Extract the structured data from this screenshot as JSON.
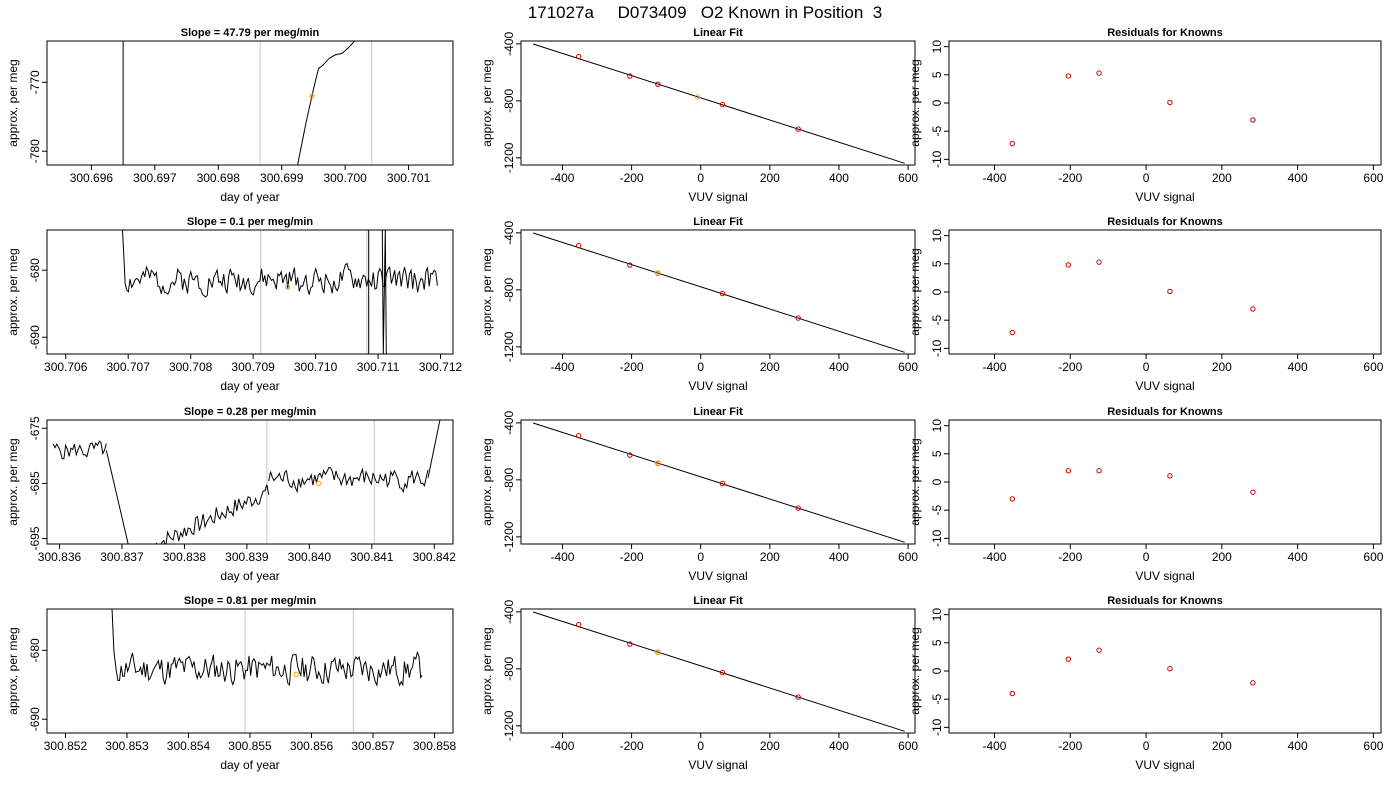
{
  "page_title": "171027a     D073409   O2 Known in Position  3",
  "chart_data": [
    {
      "type": "line",
      "title": "Slope =  47.79  per meg/min",
      "xlabel": "day of year",
      "ylabel": "approx. per meg",
      "xlim": [
        300.6953,
        300.7017
      ],
      "ylim": [
        -782,
        -764
      ],
      "xticks": [
        "300.696",
        "300.697",
        "300.698",
        "300.699",
        "300.700",
        "300.701"
      ],
      "yticks": [
        -780,
        -770
      ],
      "vlines_black": [
        300.6965
      ],
      "vlines_gray": [
        300.69866,
        300.70042
      ],
      "series": [
        {
          "x": [
            300.69925,
            300.69938,
            300.6995,
            300.69958,
            300.69965,
            300.69975,
            300.69985,
            300.69995,
            300.70005,
            300.70015,
            300.70025
          ],
          "y": [
            -782,
            -776,
            -771,
            -768,
            -767.5,
            -766.5,
            -766,
            -765.8,
            -765,
            -764,
            -762
          ]
        }
      ],
      "marker": {
        "x": 300.69948,
        "y": -772,
        "color": "#FFA500"
      }
    },
    {
      "type": "scatter",
      "title": "Linear Fit",
      "xlabel": "VUV signal",
      "ylabel": "approx. per meg",
      "xlim": [
        -520,
        620
      ],
      "ylim": [
        -1250,
        -380
      ],
      "xticks": [
        -400,
        -200,
        0,
        200,
        400,
        600
      ],
      "yticks": [
        -400,
        -800,
        -1200
      ],
      "fit_line": {
        "x": [
          -485,
          590
        ],
        "y": [
          -401,
          -1238
        ]
      },
      "points": {
        "x": [
          -353,
          -205,
          -124,
          63,
          282
        ],
        "y": [
          -490,
          -626,
          -684,
          -826,
          -998
        ]
      },
      "highlight": {
        "x": -10,
        "y": -772,
        "color": "#FFA500"
      }
    },
    {
      "type": "scatter",
      "title": "Residuals for Knowns",
      "xlabel": "VUV signal",
      "ylabel": "approx. per meg",
      "xlim": [
        -520,
        620
      ],
      "ylim": [
        -11,
        11
      ],
      "xticks": [
        -400,
        -200,
        0,
        200,
        400,
        600
      ],
      "yticks": [
        10,
        5,
        0,
        -5,
        -10
      ],
      "points": {
        "x": [
          -353,
          -205,
          -124,
          63,
          282
        ],
        "y": [
          -7.2,
          4.8,
          5.3,
          0.1,
          -3
        ]
      }
    },
    {
      "type": "line",
      "title": "Slope =  0.1  per meg/min",
      "xlabel": "day of year",
      "ylabel": "approx. per meg",
      "xlim": [
        300.7057,
        300.7122
      ],
      "ylim": [
        -692.5,
        -674
      ],
      "xticks": [
        "300.706",
        "300.707",
        "300.708",
        "300.709",
        "300.710",
        "300.711",
        "300.712"
      ],
      "yticks": [
        -690,
        -680
      ],
      "vlines_black": [
        300.71085
      ],
      "vlines_gray": [
        300.70912,
        300.71082
      ],
      "spike_x": 300.7111,
      "series": [
        {
          "x0": 300.70695,
          "x1": 300.71195,
          "base": -681.5,
          "amp": 1.8,
          "n": 190,
          "seed": 2,
          "start_from": -672
        }
      ],
      "marker": {
        "x": 300.70955,
        "y": -682.5,
        "color": "#FFA500"
      }
    },
    {
      "type": "scatter",
      "title": "Linear Fit",
      "xlabel": "VUV signal",
      "ylabel": "approx. per meg",
      "xlim": [
        -520,
        620
      ],
      "ylim": [
        -1250,
        -380
      ],
      "xticks": [
        -400,
        -200,
        0,
        200,
        400,
        600
      ],
      "yticks": [
        -400,
        -800,
        -1200
      ],
      "fit_line": {
        "x": [
          -485,
          590
        ],
        "y": [
          -401,
          -1238
        ]
      },
      "points": {
        "x": [
          -353,
          -205,
          -124,
          63,
          282
        ],
        "y": [
          -490,
          -626,
          -684,
          -826,
          -998
        ]
      },
      "highlight": {
        "x": -124,
        "y": -682,
        "color": "#FFA500"
      }
    },
    {
      "type": "scatter",
      "title": "Residuals for Knowns",
      "xlabel": "VUV signal",
      "ylabel": "approx. per meg",
      "xlim": [
        -520,
        620
      ],
      "ylim": [
        -11,
        11
      ],
      "xticks": [
        -400,
        -200,
        0,
        200,
        400,
        600
      ],
      "yticks": [
        10,
        5,
        0,
        -5,
        -10
      ],
      "points": {
        "x": [
          -353,
          -205,
          -124,
          63,
          282
        ],
        "y": [
          -7.2,
          4.8,
          5.3,
          0.1,
          -3
        ]
      }
    },
    {
      "type": "line",
      "title": "Slope =  0.28  per meg/min",
      "xlabel": "day of year",
      "ylabel": "approx. per meg",
      "xlim": [
        300.8358,
        300.8423
      ],
      "ylim": [
        -696,
        -673.5
      ],
      "xticks": [
        "300.836",
        "300.837",
        "300.838",
        "300.839",
        "300.840",
        "300.841",
        "300.842"
      ],
      "yticks": [
        -675,
        -685,
        -695
      ],
      "vlines_gray": [
        300.83932,
        300.84104
      ],
      "series": [
        {
          "x0": 300.8359,
          "x1": 300.83675,
          "base": -679,
          "amp": 1.5,
          "n": 30,
          "seed": 5
        },
        {
          "x0": 300.83675,
          "x1": 300.83712,
          "ramp": [
            -679,
            -697
          ],
          "n": 12,
          "seed": 6
        },
        {
          "x0": 300.83755,
          "x1": 300.83935,
          "ramp": [
            -696,
            -686.5
          ],
          "amp": 1.6,
          "n": 60,
          "seed": 7
        },
        {
          "x0": 300.83935,
          "x1": 300.8419,
          "base": -684.2,
          "amp": 1.8,
          "n": 90,
          "seed": 8
        },
        {
          "x0": 300.8419,
          "x1": 300.8421,
          "ramp": [
            -684,
            -673
          ],
          "n": 5,
          "seed": 9
        }
      ],
      "marker": {
        "x": 300.84015,
        "y": -685,
        "color": "#FFA500"
      }
    },
    {
      "type": "scatter",
      "title": "Linear Fit",
      "xlabel": "VUV signal",
      "ylabel": "approx. per meg",
      "xlim": [
        -520,
        620
      ],
      "ylim": [
        -1250,
        -380
      ],
      "xticks": [
        -400,
        -200,
        0,
        200,
        400,
        600
      ],
      "yticks": [
        -400,
        -800,
        -1200
      ],
      "fit_line": {
        "x": [
          -485,
          590
        ],
        "y": [
          -401,
          -1238
        ]
      },
      "points": {
        "x": [
          -353,
          -205,
          -124,
          63,
          282
        ],
        "y": [
          -490,
          -626,
          -684,
          -826,
          -998
        ]
      },
      "highlight": {
        "x": -124,
        "y": -682,
        "color": "#FFA500"
      }
    },
    {
      "type": "scatter",
      "title": "Residuals for Knowns",
      "xlabel": "VUV signal",
      "ylabel": "approx. per meg",
      "xlim": [
        -520,
        620
      ],
      "ylim": [
        -11,
        11
      ],
      "xticks": [
        -400,
        -200,
        0,
        200,
        400,
        600
      ],
      "yticks": [
        10,
        5,
        0,
        -5,
        -10
      ],
      "points": {
        "x": [
          -353,
          -205,
          -124,
          63,
          282
        ],
        "y": [
          -3,
          2,
          2,
          1.1,
          -1.8
        ]
      }
    },
    {
      "type": "line",
      "title": "Slope =  0.81  per meg/min",
      "xlabel": "day of year",
      "ylabel": "approx. per meg",
      "xlim": [
        300.8517,
        300.8583
      ],
      "ylim": [
        -692,
        -674
      ],
      "xticks": [
        "300.852",
        "300.853",
        "300.854",
        "300.855",
        "300.856",
        "300.857",
        "300.858"
      ],
      "yticks": [
        -690,
        -680
      ],
      "vlines_gray": [
        300.85492,
        300.85668
      ],
      "series": [
        {
          "x0": 300.8528,
          "x1": 300.8578,
          "base": -682.7,
          "amp": 2.0,
          "n": 190,
          "seed": 11,
          "start_from": -672
        }
      ],
      "marker": {
        "x": 300.85575,
        "y": -683.5,
        "color": "#FFA500"
      }
    },
    {
      "type": "scatter",
      "title": "Linear Fit",
      "xlabel": "VUV signal",
      "ylabel": "approx. per meg",
      "xlim": [
        -520,
        620
      ],
      "ylim": [
        -1250,
        -380
      ],
      "xticks": [
        -400,
        -200,
        0,
        200,
        400,
        600
      ],
      "yticks": [
        -400,
        -800,
        -1200
      ],
      "fit_line": {
        "x": [
          -485,
          590
        ],
        "y": [
          -401,
          -1238
        ]
      },
      "points": {
        "x": [
          -353,
          -205,
          -124,
          63,
          282
        ],
        "y": [
          -490,
          -626,
          -684,
          -826,
          -998
        ]
      },
      "highlight": {
        "x": -124,
        "y": -684,
        "color": "#FFA500"
      }
    },
    {
      "type": "scatter",
      "title": "Residuals for Knowns",
      "xlabel": "VUV signal",
      "ylabel": "approx. per meg",
      "xlim": [
        -520,
        620
      ],
      "ylim": [
        -11,
        11
      ],
      "xticks": [
        -400,
        -200,
        0,
        200,
        400,
        600
      ],
      "yticks": [
        10,
        5,
        0,
        -5,
        -10
      ],
      "points": {
        "x": [
          -353,
          -205,
          -124,
          63,
          282
        ],
        "y": [
          -4,
          2.1,
          3.7,
          0.4,
          -2.1
        ]
      }
    }
  ]
}
